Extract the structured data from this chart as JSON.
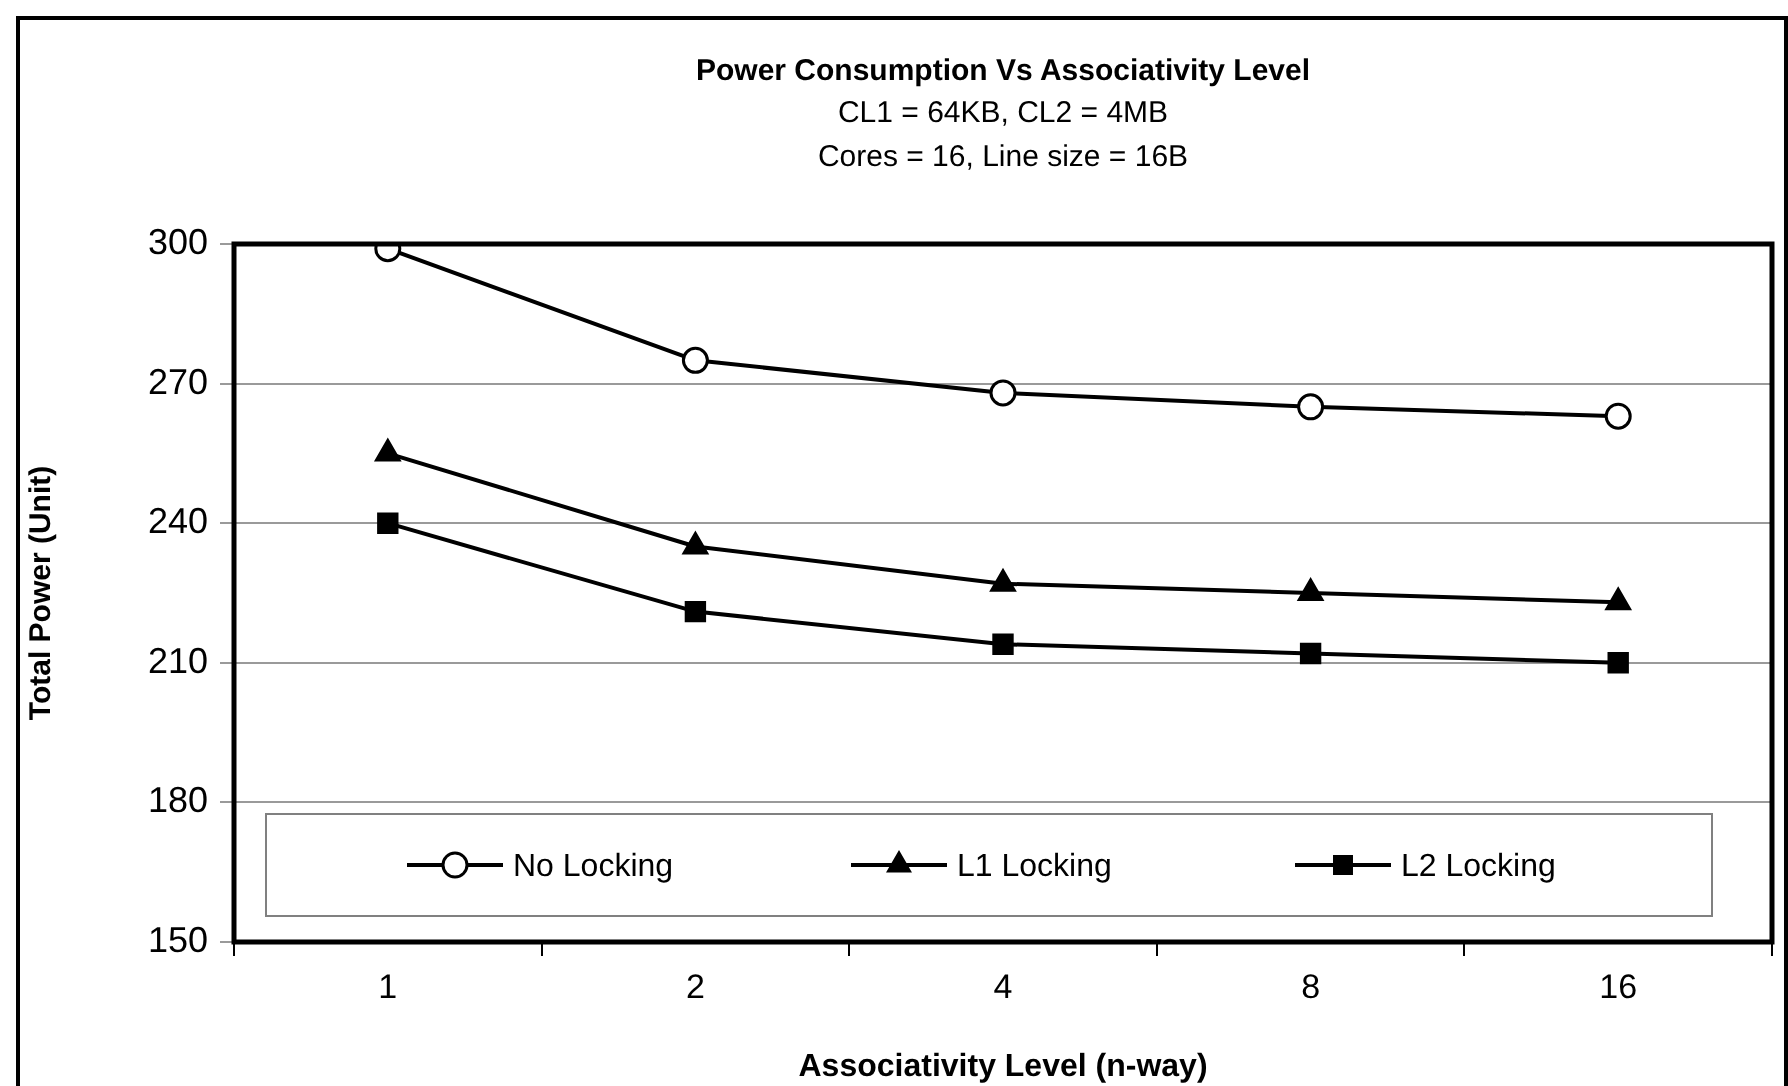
{
  "chart_data": {
    "type": "line",
    "title": "Power Consumption Vs Associativity Level",
    "subtitle": "CL1 = 64KB, CL2 = 4MB\nCores = 16, Line size = 16B",
    "xlabel": "Associativity Level (n-way)",
    "ylabel": "Total Power (Unit)",
    "categories": [
      "1",
      "2",
      "4",
      "8",
      "16"
    ],
    "series": [
      {
        "name": "No Locking",
        "color": "#000000",
        "marker": "circle",
        "values": [
          299,
          275,
          268,
          265,
          263
        ]
      },
      {
        "name": "L1 Locking",
        "color": "#000000",
        "marker": "triangle",
        "values": [
          255,
          235,
          227,
          225,
          223
        ]
      },
      {
        "name": "L2 Locking",
        "color": "#000000",
        "marker": "square",
        "values": [
          240,
          221,
          214,
          212,
          210
        ]
      }
    ],
    "ylim": [
      150,
      300
    ],
    "yticks": [
      150,
      180,
      210,
      240,
      270,
      300
    ],
    "grid": "y",
    "legend": "bottom",
    "line_style": "solid"
  }
}
